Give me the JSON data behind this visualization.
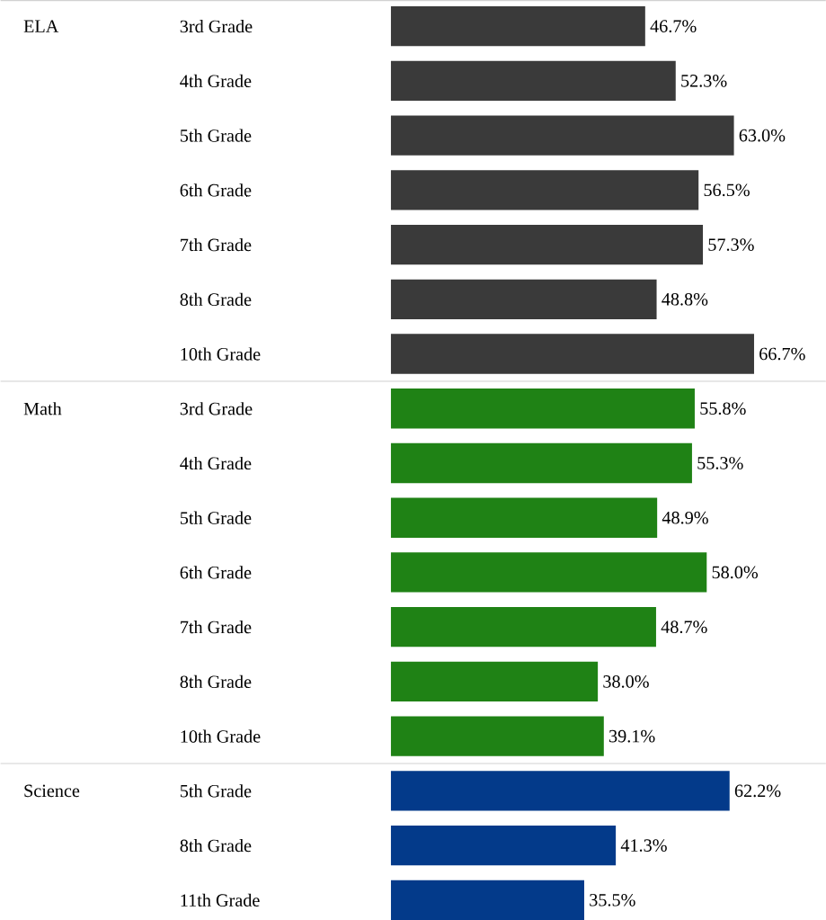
{
  "chart_data": {
    "type": "bar",
    "orientation": "horizontal",
    "categories": [
      "3rd Grade",
      "4th Grade",
      "5th Grade",
      "6th Grade",
      "7th Grade",
      "8th Grade",
      "10th Grade",
      "3rd Grade",
      "4th Grade",
      "5th Grade",
      "6th Grade",
      "7th Grade",
      "8th Grade",
      "10th Grade",
      "5th Grade",
      "8th Grade",
      "11th Grade"
    ],
    "values": [
      46.7,
      52.3,
      63.0,
      56.5,
      57.3,
      48.8,
      66.7,
      55.8,
      55.3,
      48.9,
      58.0,
      48.7,
      38.0,
      39.1,
      62.2,
      41.3,
      35.5
    ],
    "value_labels": [
      "46.7%",
      "52.3%",
      "63.0%",
      "56.5%",
      "57.3%",
      "48.8%",
      "66.7%",
      "55.8%",
      "55.3%",
      "48.9%",
      "58.0%",
      "48.7%",
      "38.0%",
      "39.1%",
      "62.2%",
      "41.3%",
      "35.5%"
    ],
    "colors": [
      "#3a3a3a",
      "#3a3a3a",
      "#3a3a3a",
      "#3a3a3a",
      "#3a3a3a",
      "#3a3a3a",
      "#3a3a3a",
      "#1f8215",
      "#1f8215",
      "#1f8215",
      "#1f8215",
      "#1f8215",
      "#1f8215",
      "#1f8215",
      "#033a8a",
      "#033a8a",
      "#033a8a"
    ],
    "annotations": [
      "ELA",
      "Math",
      "Science"
    ]
  }
}
